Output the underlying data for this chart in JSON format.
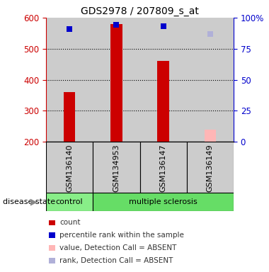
{
  "title": "GDS2978 / 207809_s_at",
  "samples": [
    "GSM136140",
    "GSM134953",
    "GSM136147",
    "GSM136149"
  ],
  "bar_values": [
    360,
    580,
    460,
    null
  ],
  "bar_color": "#cc0000",
  "absent_bar_value": 240,
  "absent_bar_color": "#ffb6b6",
  "rank_values": [
    563,
    578,
    572,
    null
  ],
  "rank_absent_value": 548,
  "rank_absent_color": "#b0b0d8",
  "rank_color": "#0000cc",
  "ylim_left": [
    200,
    600
  ],
  "ylim_right": [
    0,
    100
  ],
  "yticks_left": [
    200,
    300,
    400,
    500,
    600
  ],
  "yticks_right": [
    0,
    25,
    50,
    75,
    100
  ],
  "ytick_labels_right": [
    "0",
    "25",
    "50",
    "75",
    "100%"
  ],
  "left_axis_color": "#cc0000",
  "right_axis_color": "#0000cc",
  "group_colors": [
    "#88ee88",
    "#66dd66"
  ],
  "sample_area_color": "#cccccc",
  "bar_bottom": 200,
  "bar_width": 0.25,
  "legend_items": [
    {
      "color": "#cc0000",
      "label": "count"
    },
    {
      "color": "#0000cc",
      "label": "percentile rank within the sample"
    },
    {
      "color": "#ffb6b6",
      "label": "value, Detection Call = ABSENT"
    },
    {
      "color": "#b0b0d8",
      "label": "rank, Detection Call = ABSENT"
    }
  ],
  "grid_lines": [
    300,
    400,
    500
  ],
  "bg_color": "#ffffff"
}
